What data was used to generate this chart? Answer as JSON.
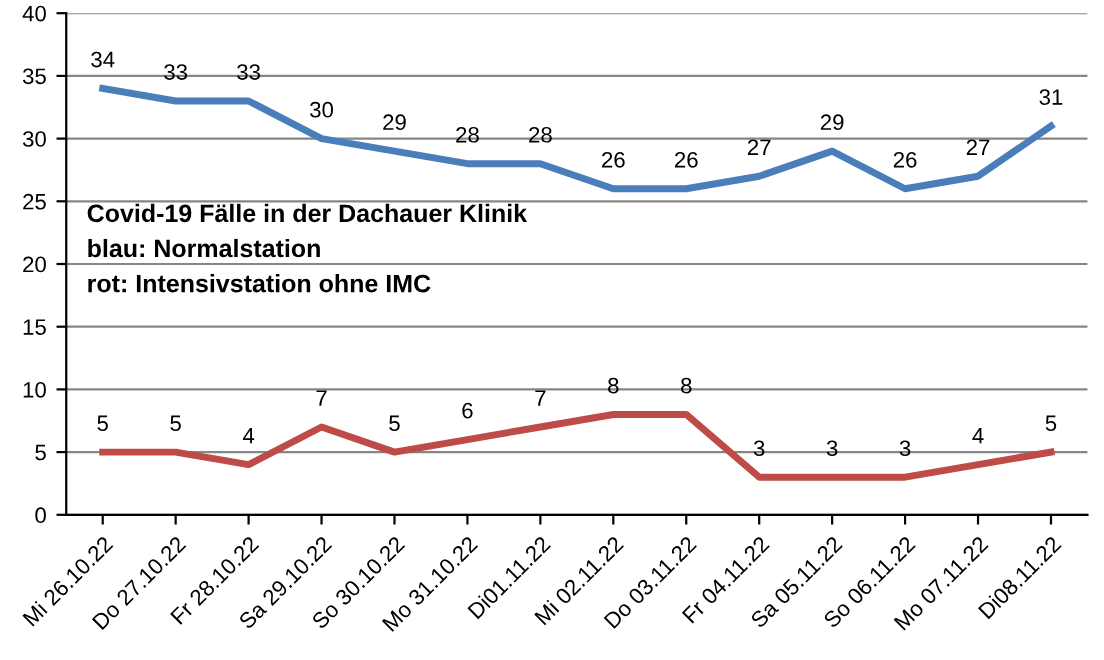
{
  "chart_data": {
    "type": "line",
    "categories": [
      "Mi 26.10.22",
      "Do 27.10.22",
      "Fr 28.10.22",
      "Sa 29.10.22",
      "So 30.10.22",
      "Mo 31.10.22",
      "Di01.11.22",
      "Mi 02.11.22",
      "Do 03.11.22",
      "Fr 04.11.22",
      "Sa 05.11.22",
      "So 06.11.22",
      "Mo 07.11.22",
      "Di08.11.22"
    ],
    "series": [
      {
        "color": "#4a7ebb",
        "values": [
          34,
          33,
          33,
          30,
          29,
          28,
          28,
          26,
          26,
          27,
          29,
          26,
          27,
          31
        ]
      },
      {
        "color": "#be4b48",
        "values": [
          5,
          5,
          4,
          7,
          5,
          6,
          7,
          8,
          8,
          3,
          3,
          3,
          4,
          5
        ]
      }
    ],
    "ylim": [
      0,
      40
    ],
    "yticks": [
      0,
      5,
      10,
      15,
      20,
      25,
      30,
      35,
      40
    ],
    "grid": "y",
    "data_labels": true,
    "marker": "none",
    "line_style": "solid",
    "annotations": [
      "Covid-19 Fälle in der Dachauer Klinik",
      "blau: Normalstation",
      "rot: Intensivstation ohne IMC"
    ]
  }
}
